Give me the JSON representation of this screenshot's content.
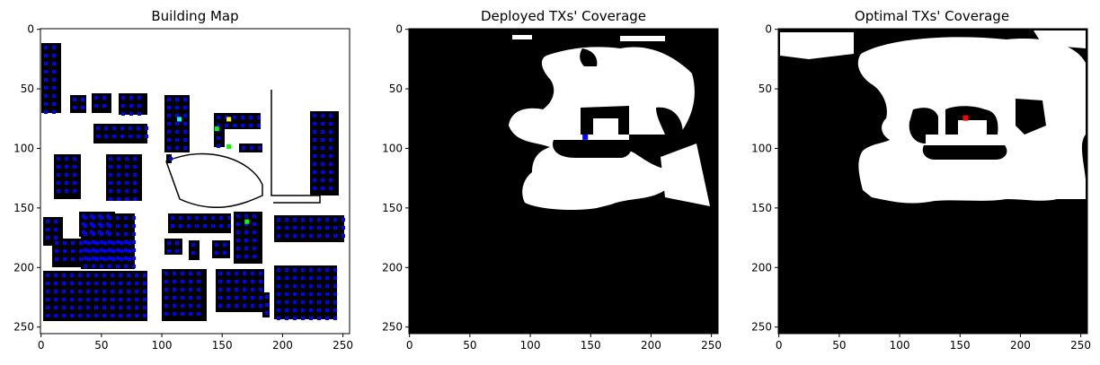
{
  "chart_data": [
    {
      "type": "heatmap",
      "title": "Building Map",
      "xlim": [
        0,
        255
      ],
      "ylim": [
        255,
        0
      ],
      "xticks": [
        0,
        50,
        100,
        150,
        200,
        250
      ],
      "yticks": [
        0,
        50,
        100,
        150,
        200,
        250
      ],
      "description_values": {
        "background": "#ffffff",
        "buildings": "#000000",
        "candidate_tx_marker": "#0000ff",
        "deployed_tx_markers": [
          "#00ffff",
          "#ffff00",
          "#00ff00",
          "#00ff00",
          "#00ff00"
        ]
      },
      "deployed_tx_positions": [
        [
          115,
          76
        ],
        [
          156,
          76
        ],
        [
          146,
          84
        ],
        [
          156,
          99
        ],
        [
          171,
          162
        ]
      ]
    },
    {
      "type": "heatmap",
      "title": "Deployed TXs' Coverage",
      "xlim": [
        0,
        255
      ],
      "ylim": [
        255,
        0
      ],
      "xticks": [
        0,
        50,
        100,
        150,
        200,
        250
      ],
      "yticks": [
        0,
        50,
        100,
        150,
        200,
        250
      ],
      "colors": {
        "covered": "#ffffff",
        "uncovered": "#000000",
        "tx": "#0000ff"
      },
      "tx_positions": [
        [
          146,
          91
        ]
      ]
    },
    {
      "type": "heatmap",
      "title": "Optimal TXs' Coverage",
      "xlim": [
        0,
        255
      ],
      "ylim": [
        255,
        0
      ],
      "xticks": [
        0,
        50,
        100,
        150,
        200,
        250
      ],
      "yticks": [
        0,
        50,
        100,
        150,
        200,
        250
      ],
      "colors": {
        "covered": "#ffffff",
        "uncovered": "#000000",
        "tx": "#ff0000"
      },
      "tx_positions": [
        [
          155,
          75
        ]
      ]
    }
  ]
}
